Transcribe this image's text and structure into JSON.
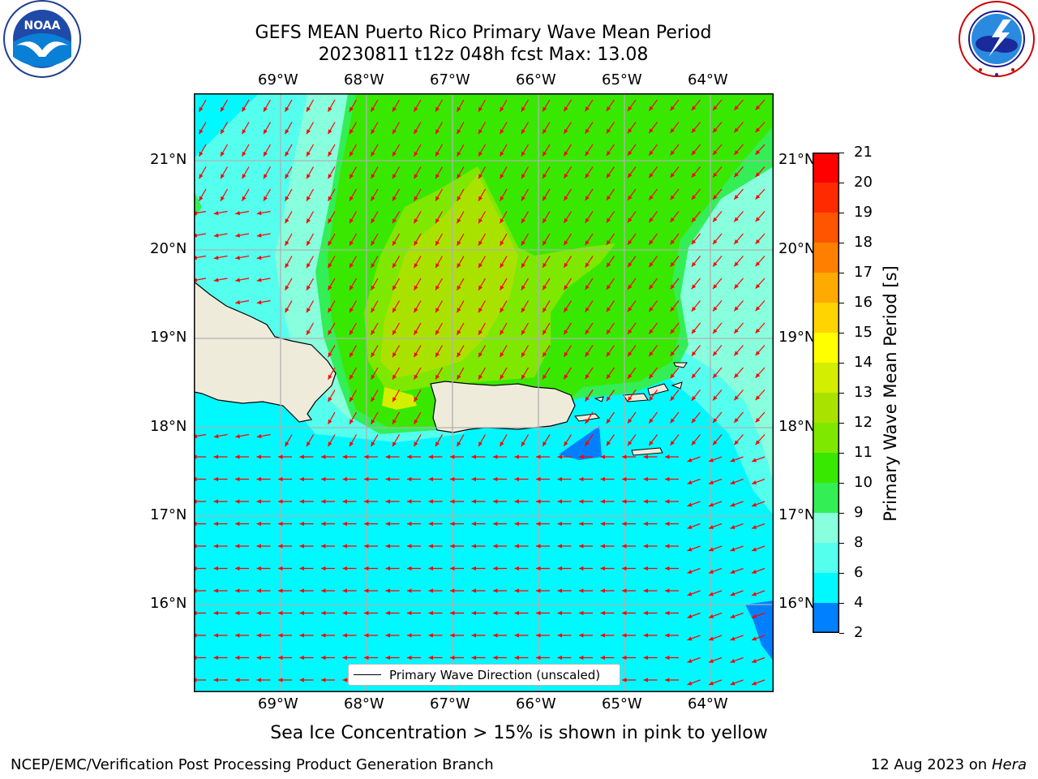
{
  "header": {
    "title_line1": "GEFS MEAN Puerto Rico Primary Wave Mean Period",
    "title_line2": "20230811 t12z 048h fcst   Max: 13.08",
    "noaa_logo_text": "NOAA",
    "noaa_logo_ring_text": "NATIONAL OCEANIC AND ATMOSPHERIC ADMINISTRATION · U.S. DEPARTMENT OF COMMERCE",
    "nws_logo_ring_text": "NATIONAL WEATHER SERVICE"
  },
  "map": {
    "lon_labels": [
      "69°W",
      "68°W",
      "67°W",
      "66°W",
      "65°W",
      "64°W"
    ],
    "lat_labels": [
      "21°N",
      "20°N",
      "19°N",
      "18°N",
      "17°N",
      "16°N"
    ],
    "legend_label": "Primary Wave Direction (unscaled)",
    "arrow_color": "#ff0000",
    "land_color": "#efebdb",
    "wave_direction": "toward the west / southwest"
  },
  "colorbar": {
    "label": "Primary Wave Mean Period [s]",
    "ticks": [
      "21",
      "20",
      "19",
      "18",
      "17",
      "16",
      "15",
      "14",
      "13",
      "12",
      "11",
      "10",
      "9",
      "8",
      "6",
      "4",
      "2"
    ],
    "colors": [
      "#ff0000",
      "#ff2a00",
      "#ff5500",
      "#ff7f00",
      "#ffaa00",
      "#ffd400",
      "#ffff00",
      "#d4ee00",
      "#aae200",
      "#7fe800",
      "#39e800",
      "#33ee55",
      "#88ffdd",
      "#55ffee",
      "#00f8ff",
      "#0080ff",
      "#0000ff"
    ]
  },
  "caption": "Sea Ice Concentration > 15% is shown in pink to yellow",
  "footer": {
    "left": "NCEP/EMC/Verification Post Processing Product Generation Branch",
    "right_date": "12 Aug 2023 on",
    "right_host": "Hera"
  }
}
